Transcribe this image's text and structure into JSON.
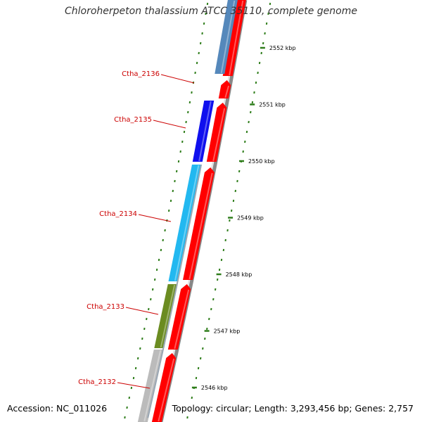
{
  "title": "Chloroherpeton thalassium ATCC 35110, complete genome",
  "accession": "Accession: NC_011026",
  "summary": "Topology: circular; Length: 3,293,456 bp; Genes: 2,757",
  "colors": {
    "forward_strand": "#ff0000",
    "backbone": "#888888",
    "tick": "#2e7d1a",
    "label": "#cc0000"
  },
  "scale_ticks": [
    {
      "label": "2552 kbp",
      "kbp": 2552
    },
    {
      "label": "2551 kbp",
      "kbp": 2551
    },
    {
      "label": "2550 kbp",
      "kbp": 2550
    },
    {
      "label": "2549 kbp",
      "kbp": 2549
    },
    {
      "label": "2548 kbp",
      "kbp": 2548
    },
    {
      "label": "2547 kbp",
      "kbp": 2547
    },
    {
      "label": "2546 kbp",
      "kbp": 2546
    }
  ],
  "genes": [
    {
      "label": "Ctha_2136",
      "color": "#ff0000",
      "strand": "forward"
    },
    {
      "label": "Ctha_2135",
      "color": "#1010ee",
      "strand": "reverse"
    },
    {
      "label": "Ctha_2134",
      "color": "#22b8f0",
      "strand": "reverse"
    },
    {
      "label": "Ctha_2133",
      "color": "#6b8c21",
      "strand": "reverse"
    },
    {
      "label": "Ctha_2132",
      "color": "#bbbbbb",
      "strand": "reverse"
    }
  ]
}
